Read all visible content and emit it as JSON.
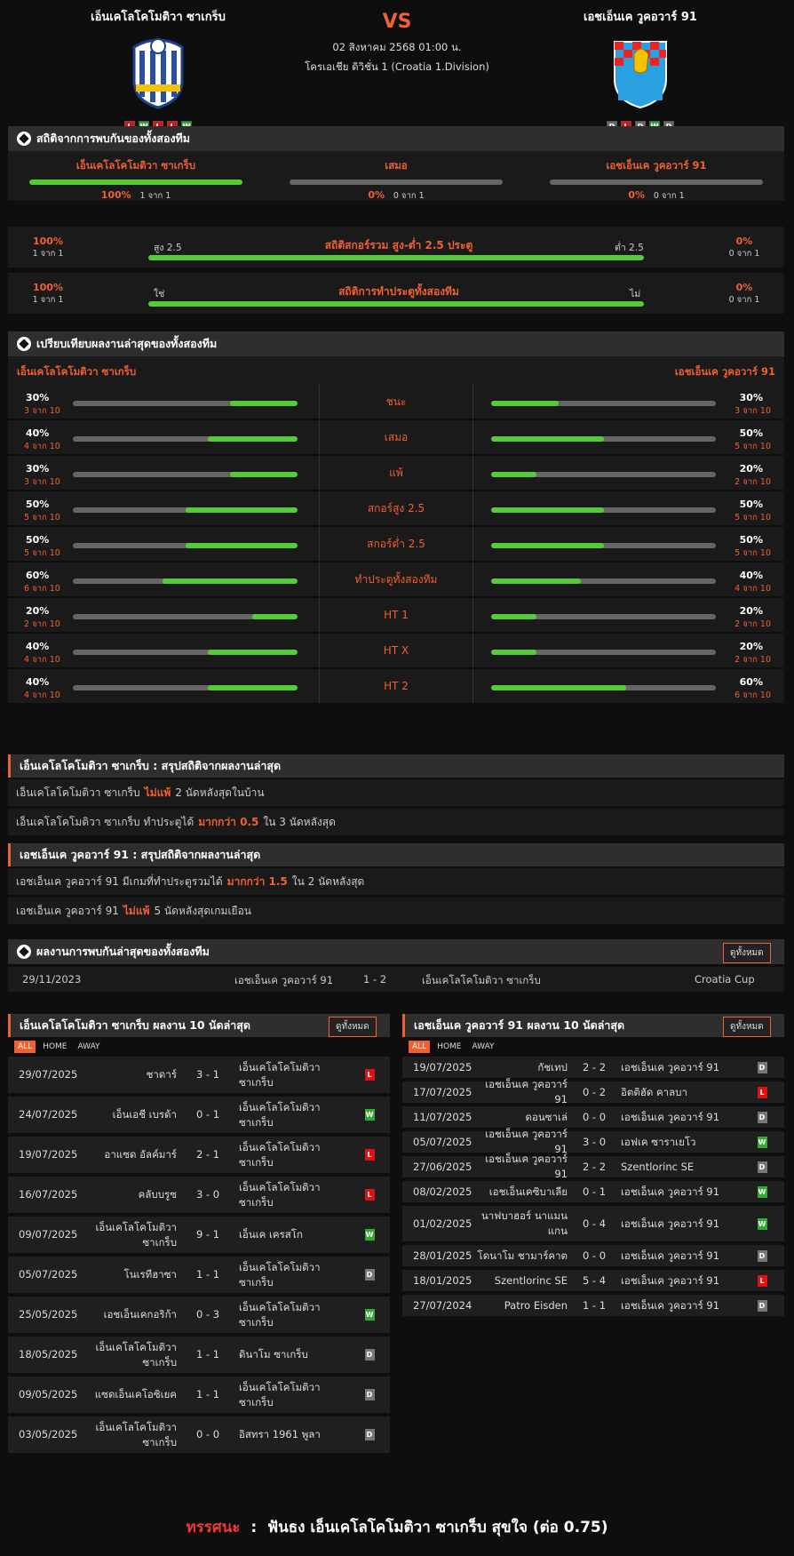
{
  "header": {
    "home_name": "เอ็นเคโลโคโมติวา ซาเกร็บ",
    "away_name": "เอชเอ็นเค วูคอวาร์ 91",
    "vs": "VS",
    "datetime": "02 สิงหาคม 2568 01:00 น.",
    "league": "โครเอเชีย ดิวิชั่น 1 (Croatia 1.Division)",
    "home_form": [
      "L",
      "W",
      "L",
      "L",
      "W"
    ],
    "away_form": [
      "D",
      "L",
      "D",
      "W",
      "D"
    ],
    "home_logo_text": "1914 NK LOKOMOTIVA",
    "away_logo_text": "HNK VUKOVAR 1991",
    "home_color": "#2a4ea0",
    "away_color": "#2aa0e0"
  },
  "h2h": {
    "title": "สถิติจากการพบกันของทั้งสองทีม",
    "home": {
      "label": "เอ็นเคโลโคโมติวา ซาเกร็บ",
      "pct": "100%",
      "count": "1 จาก 1",
      "fill": 1.0
    },
    "draw": {
      "label": "เสมอ",
      "pct": "0%",
      "count": "0 จาก 1",
      "fill": 0
    },
    "away": {
      "label": "เอชเอ็นเค วูคอวาร์ 91",
      "pct": "0%",
      "count": "0 จาก 1",
      "fill": 0
    },
    "ou": {
      "title": "สถิติสกอร์รวม สูง-ต่ำ 2.5 ประตู",
      "left_pct": "100%",
      "left_count": "1 จาก 1",
      "left_label": "สูง 2.5",
      "right_label": "ต่ำ 2.5",
      "right_pct": "0%",
      "right_count": "0 จาก 1",
      "fill": 1.0
    },
    "btts": {
      "title": "สถิติการทำประตูทั้งสองทีม",
      "left_pct": "100%",
      "left_count": "1 จาก 1",
      "left_label": "ใช่",
      "right_label": "ไม่",
      "right_pct": "0%",
      "right_count": "0 จาก 1",
      "fill": 1.0
    }
  },
  "compare": {
    "title": "เปรียบเทียบผลงานล่าสุดของทั้งสองทีม",
    "home_name": "เอ็นเคโลโคโมติวา ซาเกร็บ",
    "away_name": "เอชเอ็นเค วูคอวาร์ 91",
    "rows": [
      {
        "label": "ชนะ",
        "hp": "30%",
        "hc": "3 จาก 10",
        "hv": 0.3,
        "ap": "30%",
        "ac": "3 จาก 10",
        "av": 0.3
      },
      {
        "label": "เสมอ",
        "hp": "40%",
        "hc": "4 จาก 10",
        "hv": 0.4,
        "ap": "50%",
        "ac": "5 จาก 10",
        "av": 0.5
      },
      {
        "label": "แพ้",
        "hp": "30%",
        "hc": "3 จาก 10",
        "hv": 0.3,
        "ap": "20%",
        "ac": "2 จาก 10",
        "av": 0.2
      },
      {
        "label": "สกอร์สูง 2.5",
        "hp": "50%",
        "hc": "5 จาก 10",
        "hv": 0.5,
        "ap": "50%",
        "ac": "5 จาก 10",
        "av": 0.5
      },
      {
        "label": "สกอร์ต่ำ 2.5",
        "hp": "50%",
        "hc": "5 จาก 10",
        "hv": 0.5,
        "ap": "50%",
        "ac": "5 จาก 10",
        "av": 0.5
      },
      {
        "label": "ทำประตูทั้งสองทีม",
        "hp": "60%",
        "hc": "6 จาก 10",
        "hv": 0.6,
        "ap": "40%",
        "ac": "4 จาก 10",
        "av": 0.4
      },
      {
        "label": "HT 1",
        "hp": "20%",
        "hc": "2 จาก 10",
        "hv": 0.2,
        "ap": "20%",
        "ac": "2 จาก 10",
        "av": 0.2
      },
      {
        "label": "HT X",
        "hp": "40%",
        "hc": "4 จาก 10",
        "hv": 0.4,
        "ap": "20%",
        "ac": "2 จาก 10",
        "av": 0.2
      },
      {
        "label": "HT 2",
        "hp": "40%",
        "hc": "4 จาก 10",
        "hv": 0.4,
        "ap": "60%",
        "ac": "6 จาก 10",
        "av": 0.6
      }
    ]
  },
  "summary_home": {
    "title": "เอ็นเคโลโคโมติวา ซาเกร็บ : สรุปสถิติจากผลงานล่าสุด",
    "l1a": "เอ็นเคโลโคโมติวา ซาเกร็บ",
    "l1h": "ไม่แพ้",
    "l1b": "2  นัดหลังสุดในบ้าน",
    "l2a": "เอ็นเคโลโคโมติวา ซาเกร็บ  ทำประตูได้",
    "l2h": "มากกว่า  0.5",
    "l2b": "ใน 3 นัดหลังสุด"
  },
  "summary_away": {
    "title": "เอชเอ็นเค วูคอวาร์ 91 : สรุปสถิติจากผลงานล่าสุด",
    "l1a": "เอชเอ็นเค วูคอวาร์ 91  มีเกมที่ทำประตูรวมได้",
    "l1h": "มากกว่า  1.5",
    "l1b": "ใน 2 นัดหลังสุด",
    "l2a": "เอชเอ็นเค วูคอวาร์ 91",
    "l2h": "ไม่แพ้",
    "l2b": "5  นัดหลังสุดเกมเยือน"
  },
  "last_h2h": {
    "title": "ผลงานการพบกันล่าสุดของทั้งสองทีม",
    "btn": "ดูทั้งหมด",
    "date": "29/11/2023",
    "home": "เอชเอ็นเค วูคอวาร์ 91",
    "score": "1 - 2",
    "away": "เอ็นเคโลโคโมติวา ซาเกร็บ",
    "comp": "Croatia Cup"
  },
  "home_last": {
    "title": "เอ็นเคโลโคโมติวา ซาเกร็บ ผลงาน 10 นัดล่าสุด",
    "btn": "ดูทั้งหมด",
    "tabs": [
      "ALL",
      "HOME",
      "AWAY"
    ],
    "matches": [
      {
        "date": "29/07/2025",
        "home": "ชาดาร์",
        "score": "3 - 1",
        "away": "เอ็นเคโลโคโมติวา ซาเกร็บ",
        "res": "L"
      },
      {
        "date": "24/07/2025",
        "home": "เอ็นเอชี เบรด้า",
        "score": "0 - 1",
        "away": "เอ็นเคโลโคโมติวา ซาเกร็บ",
        "res": "W"
      },
      {
        "date": "19/07/2025",
        "home": "อาแซด อัลค์มาร์",
        "score": "2 - 1",
        "away": "เอ็นเคโลโคโมติวา ซาเกร็บ",
        "res": "L"
      },
      {
        "date": "16/07/2025",
        "home": "คลับบรูซ",
        "score": "3 - 0",
        "away": "เอ็นเคโลโคโมติวา ซาเกร็บ",
        "res": "L"
      },
      {
        "date": "09/07/2025",
        "home": "เอ็นเคโลโคโมติวา ซาเกร็บ",
        "score": "9 - 1",
        "away": "เอ็นเค เครสโก",
        "res": "W"
      },
      {
        "date": "05/07/2025",
        "home": "โนเรทีฮาซา",
        "score": "1 - 1",
        "away": "เอ็นเคโลโคโมติวา ซาเกร็บ",
        "res": "D"
      },
      {
        "date": "25/05/2025",
        "home": "เอชเอ็นเคกอริก้า",
        "score": "0 - 3",
        "away": "เอ็นเคโลโคโมติวา ซาเกร็บ",
        "res": "W"
      },
      {
        "date": "18/05/2025",
        "home": "เอ็นเคโลโคโมติวา ซาเกร็บ",
        "score": "1 - 1",
        "away": "ดินาโม ซาเกร็บ",
        "res": "D"
      },
      {
        "date": "09/05/2025",
        "home": "แซดเอ็นเคโอซิเยค",
        "score": "1 - 1",
        "away": "เอ็นเคโลโคโมติวา ซาเกร็บ",
        "res": "D"
      },
      {
        "date": "03/05/2025",
        "home": "เอ็นเคโลโคโมติวา ซาเกร็บ",
        "score": "0 - 0",
        "away": "อิสทรา 1961 พูลา",
        "res": "D"
      }
    ]
  },
  "away_last": {
    "title": "เอชเอ็นเค วูคอวาร์ 91 ผลงาน 10 นัดล่าสุด",
    "btn": "ดูทั้งหมด",
    "tabs": [
      "ALL",
      "HOME",
      "AWAY"
    ],
    "matches": [
      {
        "date": "19/07/2025",
        "home": "กัชเทป",
        "score": "2 - 2",
        "away": "เอชเอ็นเค วูคอวาร์ 91",
        "res": "D"
      },
      {
        "date": "17/07/2025",
        "home": "เอชเอ็นเค วูคอวาร์ 91",
        "score": "0 - 2",
        "away": "อิตติฮัด คาลบา",
        "res": "L"
      },
      {
        "date": "11/07/2025",
        "home": "ดอนซาเล่",
        "score": "0 - 0",
        "away": "เอชเอ็นเค วูคอวาร์ 91",
        "res": "D"
      },
      {
        "date": "05/07/2025",
        "home": "เอชเอ็นเค วูคอวาร์ 91",
        "score": "3 - 0",
        "away": "เอฟเค ซาราเยโว",
        "res": "W"
      },
      {
        "date": "27/06/2025",
        "home": "เอชเอ็นเค วูคอวาร์ 91",
        "score": "2 - 2",
        "away": "Szentlorinc SE",
        "res": "D"
      },
      {
        "date": "08/02/2025",
        "home": "เอชเอ็นเคซิบาเลีย",
        "score": "0 - 1",
        "away": "เอชเอ็นเค วูคอวาร์ 91",
        "res": "W"
      },
      {
        "date": "01/02/2025",
        "home": "นาฟบาฮอร์ นาแมนแกน",
        "score": "0 - 4",
        "away": "เอชเอ็นเค วูคอวาร์ 91",
        "res": "W"
      },
      {
        "date": "28/01/2025",
        "home": "โดนาโม ชามาร์คาต",
        "score": "0 - 0",
        "away": "เอชเอ็นเค วูคอวาร์ 91",
        "res": "D"
      },
      {
        "date": "18/01/2025",
        "home": "Szentlorinc SE",
        "score": "5 - 4",
        "away": "เอชเอ็นเค วูคอวาร์ 91",
        "res": "L"
      },
      {
        "date": "27/07/2024",
        "home": "Patro Eisden",
        "score": "1 - 1",
        "away": "เอชเอ็นเค วูคอวาร์ 91",
        "res": "D"
      }
    ]
  },
  "prediction": {
    "label": "ทรรศนะ",
    "sep": ":",
    "text": "ฟันธง เอ็นเคโลโคโมติวา ซาเกร็บ สุขใจ (ต่อ 0.75)"
  }
}
